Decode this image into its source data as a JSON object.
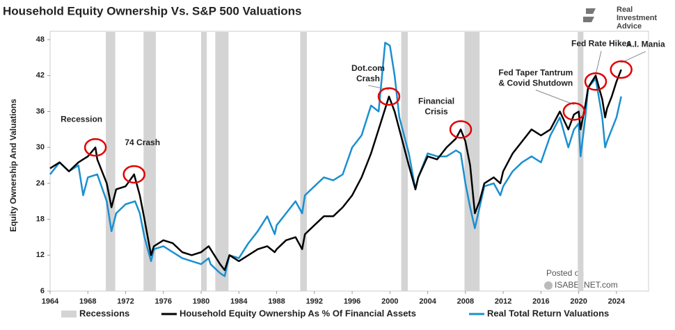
{
  "chart_data": {
    "type": "line",
    "title": "Household Equity Ownership Vs. S&P 500 Valuations",
    "ylabel": "Equity Ownership And Valuations",
    "brand": [
      "Real",
      "Investment",
      "Advice"
    ],
    "posted": [
      "Posted on",
      "ISABELNET.com"
    ],
    "xlim": [
      1964,
      2027.4
    ],
    "xticks": [
      1964,
      1968,
      1972,
      1976,
      1980,
      1984,
      1988,
      1992,
      1996,
      2000,
      2004,
      2008,
      2012,
      2016,
      2020,
      2024
    ],
    "ylim": [
      6,
      49.4
    ],
    "yticks": [
      6,
      12,
      18,
      24,
      30,
      36,
      42,
      48
    ],
    "recession_name": "Recessions",
    "recession_color": "#d4d4d4",
    "recessions": [
      [
        1969.9,
        1970.9
      ],
      [
        1973.9,
        1975.2
      ],
      [
        1980.0,
        1980.6
      ],
      [
        1981.5,
        1982.9
      ],
      [
        1990.5,
        1991.2
      ],
      [
        2001.2,
        2001.9
      ],
      [
        2007.9,
        2009.5
      ],
      [
        2019.9,
        2020.5
      ]
    ],
    "series": [
      {
        "name": "Real Total Return Valuations",
        "color": "#1a8fd0",
        "x": [
          1964,
          1965,
          1966,
          1967,
          1967.5,
          1968,
          1969,
          1970,
          1970.5,
          1971,
          1972,
          1973,
          1973.5,
          1974,
          1974.7,
          1975,
          1976,
          1977,
          1978,
          1979,
          1980,
          1980.8,
          1981,
          1982,
          1982.5,
          1983,
          1984,
          1985,
          1986,
          1987,
          1987.8,
          1988,
          1989,
          1990,
          1990.7,
          1991,
          1992,
          1993,
          1994,
          1995,
          1996,
          1997,
          1998,
          1998.8,
          1999.5,
          2000,
          2000.5,
          2001,
          2001.5,
          2002,
          2002.7,
          2003,
          2004,
          2005,
          2006,
          2007,
          2007.5,
          2008,
          2008.5,
          2009,
          2009.5,
          2010,
          2011,
          2011.7,
          2012,
          2013,
          2014,
          2015,
          2016,
          2017,
          2018,
          2018.9,
          2019.5,
          2020,
          2020.2,
          2020.7,
          2021,
          2021.8,
          2022.5,
          2022.8,
          2023,
          2023.5,
          2024,
          2024.5
        ],
        "values": [
          25.5,
          27.5,
          26,
          27,
          22,
          25,
          25.5,
          21,
          16,
          19,
          20.5,
          21,
          19,
          15,
          11,
          13,
          13.5,
          12.5,
          11.5,
          11,
          10.5,
          11.5,
          10.5,
          9,
          8.5,
          12,
          11.5,
          14,
          16,
          18.5,
          15.5,
          17,
          19,
          21,
          19,
          22,
          23.5,
          25,
          24.5,
          25.5,
          30,
          32,
          37,
          36,
          47.5,
          47,
          42,
          35,
          32,
          29,
          23,
          25,
          29,
          28.5,
          28.5,
          29.5,
          29,
          24,
          20,
          16.5,
          20,
          23.5,
          24,
          22,
          23.5,
          26,
          27.5,
          28.5,
          27.5,
          32,
          35,
          30,
          33,
          34,
          28.5,
          35,
          40,
          41.5,
          35,
          30,
          31,
          33,
          35,
          38.5
        ]
      },
      {
        "name": "Household Equity Ownership As % Of Financial Assets",
        "color": "#000000",
        "x": [
          1964,
          1965,
          1966,
          1967,
          1968,
          1968.8,
          1969,
          1970,
          1970.5,
          1971,
          1972,
          1972.9,
          1973.5,
          1974,
          1974.7,
          1975,
          1976,
          1977,
          1978,
          1979,
          1980,
          1980.8,
          1981,
          1982,
          1982.5,
          1983,
          1984,
          1985,
          1986,
          1987,
          1987.8,
          1988,
          1989,
          1990,
          1990.7,
          1991,
          1992,
          1993,
          1994,
          1995,
          1996,
          1997,
          1998,
          1999,
          1999.9,
          2000.5,
          2001,
          2001.5,
          2002,
          2002.7,
          2003,
          2004,
          2005,
          2006,
          2007,
          2007.5,
          2008,
          2008.5,
          2009,
          2009.5,
          2010,
          2011,
          2011.7,
          2012,
          2013,
          2014,
          2015,
          2016,
          2017,
          2018,
          2018.9,
          2019.5,
          2020,
          2020.2,
          2020.7,
          2021,
          2021.8,
          2022.5,
          2022.8,
          2023,
          2023.5,
          2024,
          2024.5
        ],
        "values": [
          26.5,
          27.5,
          26,
          27.5,
          28.5,
          30,
          28,
          24,
          20,
          23,
          23.5,
          25.5,
          22,
          18,
          12,
          13.5,
          14.5,
          14,
          12.5,
          12,
          12.5,
          13.5,
          13,
          10.5,
          9.5,
          12,
          11,
          12,
          13,
          13.5,
          12.5,
          13,
          14.5,
          15,
          13,
          15.5,
          17,
          18.5,
          18.5,
          20,
          22,
          25,
          29,
          34,
          38.5,
          36,
          33,
          30,
          27,
          23,
          25,
          28.5,
          28,
          30,
          31.5,
          33,
          31,
          27,
          19,
          21,
          24,
          25,
          24,
          26,
          29,
          31,
          33,
          32,
          33,
          36,
          33,
          35.5,
          36,
          33,
          37,
          40,
          42,
          38,
          35,
          36.5,
          38.5,
          41,
          43
        ]
      }
    ],
    "annotations": [
      {
        "text": [
          "Recession"
        ],
        "x": 1968.8,
        "y": 30
      },
      {
        "text": [
          "74 Crash"
        ],
        "x": 1972.9,
        "y": 25.5
      },
      {
        "text": [
          "Dot.com",
          "Crash"
        ],
        "x": 1999.9,
        "y": 38.5
      },
      {
        "text": [
          "Financial",
          "Crisis"
        ],
        "x": 2007.5,
        "y": 33
      },
      {
        "text": [
          "Fed Taper Tantrum",
          "& Covid Shutdown"
        ],
        "x": 2019.5,
        "y": 36
      },
      {
        "text": [
          "Fed Rate Hikes"
        ],
        "x": 2021.8,
        "y": 41
      },
      {
        "text": [
          "A.I. Mania"
        ],
        "x": 2024.5,
        "y": 43
      }
    ],
    "circle_color": "#e00000"
  }
}
